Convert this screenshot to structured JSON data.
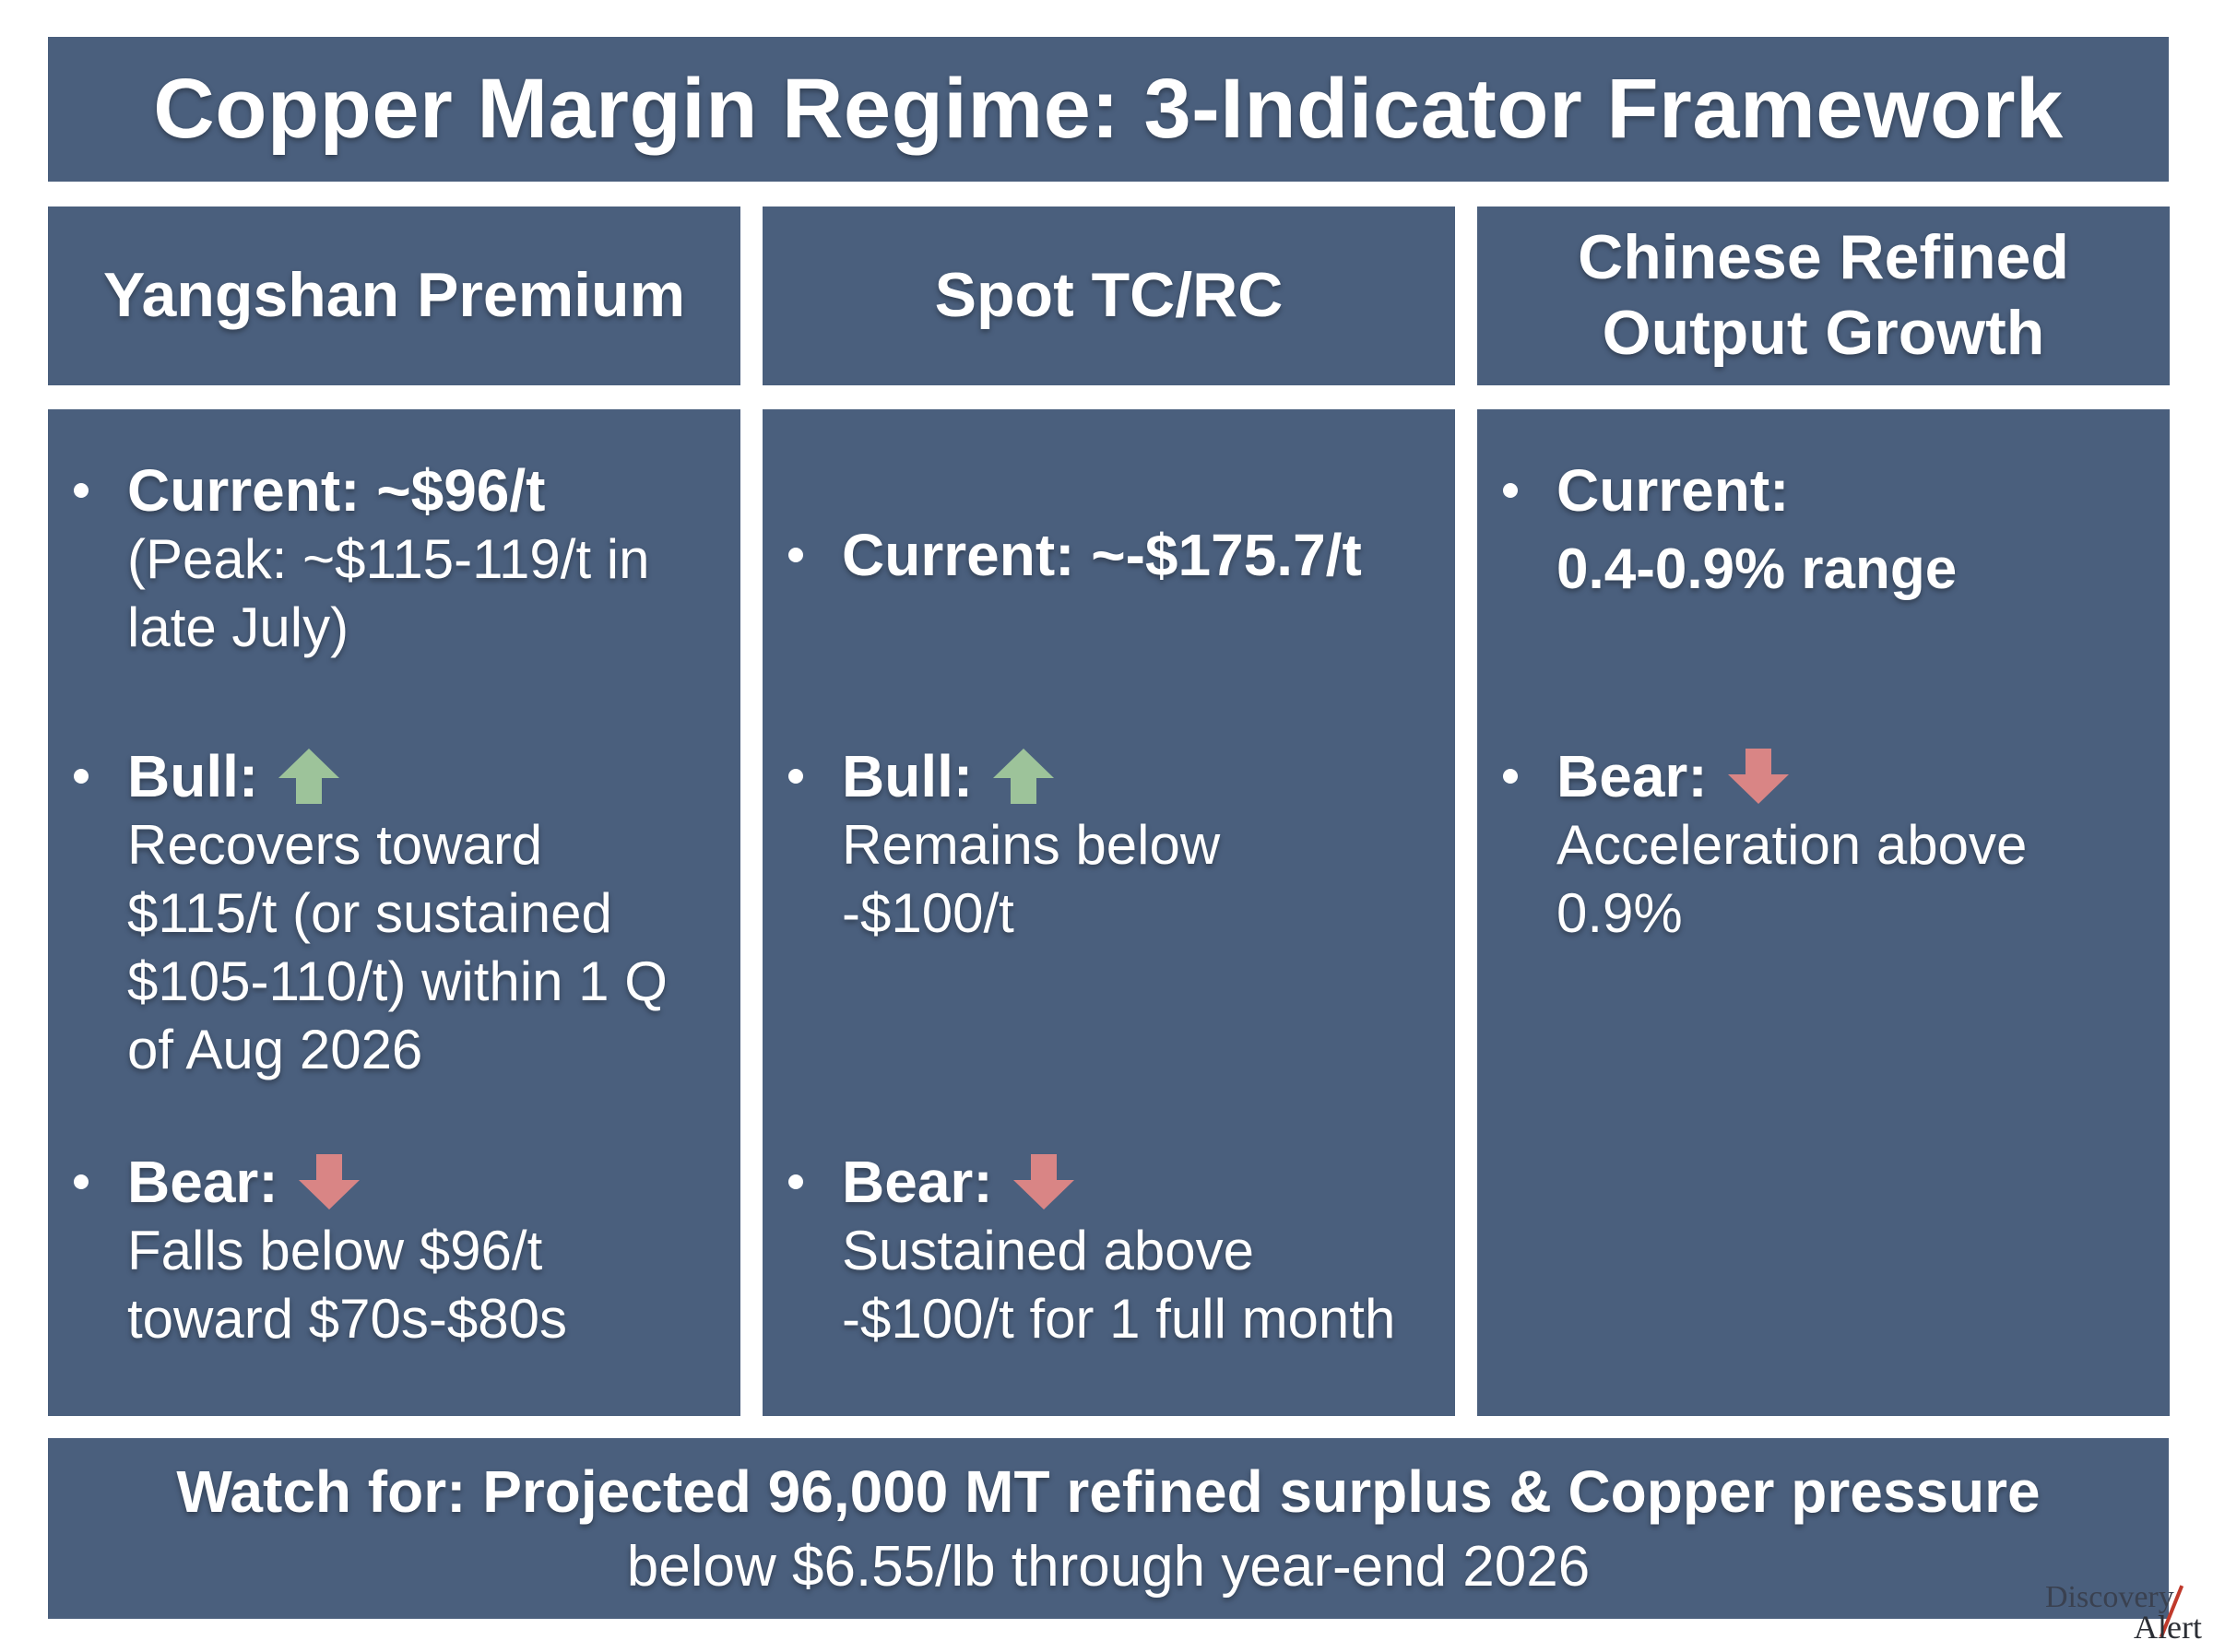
{
  "title": "Copper Margin Regime: 3-Indicator Framework",
  "columns": [
    {
      "header": "Yangshan Premium",
      "bullets": [
        {
          "label": "Current: ~$96/t",
          "text": "(Peak: ~$115-119/t in\nlate July)"
        },
        {
          "label": "Bull:",
          "arrow": "up-arrow-icon",
          "text": "Recovers toward\n$115/t (or sustained\n$105-110/t) within 1 Q\nof Aug 2026"
        },
        {
          "label": "Bear:",
          "arrow": "down-arrow-icon",
          "text": "Falls below $96/t\ntoward $70s-$80s"
        }
      ]
    },
    {
      "header": "Spot TC/RC",
      "bullets": [
        {
          "label": "Current: ~-$175.7/t",
          "text": ""
        },
        {
          "label": "Bull:",
          "arrow": "up-arrow-icon",
          "text": "Remains below\n-$100/t"
        },
        {
          "label": "Bear:",
          "arrow": "down-arrow-icon",
          "text": "Sustained above\n-$100/t for 1 full month"
        }
      ]
    },
    {
      "header_line1": "Chinese Refined",
      "header_line2": "Output Growth",
      "bullets": [
        {
          "label": "Current:",
          "value": "0.4-0.9% range"
        },
        {
          "label": "Bear:",
          "arrow": "down-arrow-icon",
          "text": "Acceleration above\n0.9%"
        }
      ]
    }
  ],
  "footer": {
    "line1": "Watch for: Projected 96,000 MT refined surplus & Copper pressure",
    "line2": "below $6.55/lb through year-end 2026"
  },
  "logo": {
    "word1": "Discovery",
    "word2": "Alert"
  },
  "colors": {
    "panel": "#4a5f7d",
    "up_arrow": "#9dc39a",
    "down_arrow": "#d98585"
  }
}
